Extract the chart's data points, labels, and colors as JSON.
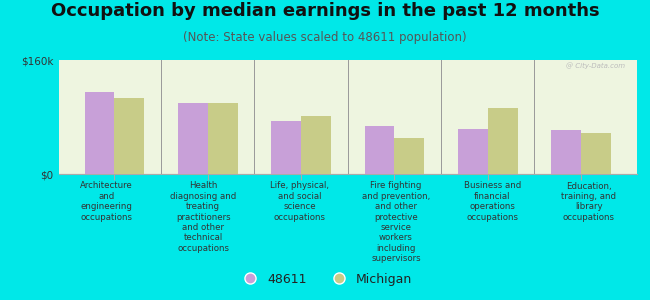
{
  "title": "Occupation by median earnings in the past 12 months",
  "subtitle": "(Note: State values scaled to 48611 population)",
  "categories": [
    "Architecture\nand\nengineering\noccupations",
    "Health\ndiagnosing and\ntreating\npractitioners\nand other\ntechnical\noccupations",
    "Life, physical,\nand social\nscience\noccupations",
    "Fire fighting\nand prevention,\nand other\nprotective\nservice\nworkers\nincluding\nsupervisors",
    "Business and\nfinancial\noperations\noccupations",
    "Education,\ntraining, and\nlibrary\noccupations"
  ],
  "values_48611": [
    115000,
    100000,
    75000,
    68000,
    63000,
    62000
  ],
  "values_michigan": [
    107000,
    100000,
    82000,
    50000,
    92000,
    58000
  ],
  "ylim": [
    0,
    160000
  ],
  "yticks": [
    0,
    160000
  ],
  "ytick_labels": [
    "$0",
    "$160k"
  ],
  "color_48611": "#c8a0d8",
  "color_michigan": "#c8cc88",
  "background_color": "#00e8e8",
  "plot_bg": "#eef5e0",
  "legend_label_48611": "48611",
  "legend_label_michigan": "Michigan",
  "bar_width": 0.32,
  "title_fontsize": 13,
  "subtitle_fontsize": 8.5,
  "tick_fontsize": 7.5,
  "label_fontsize": 6.2,
  "watermark": "@ City-Data.com"
}
